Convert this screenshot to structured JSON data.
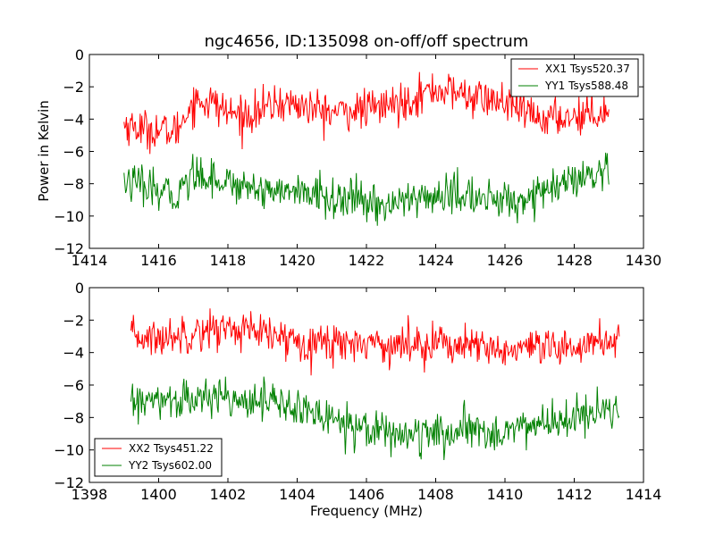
{
  "figure": {
    "title": "ngc4656, ID:135098 on-off/off spectrum",
    "ylabel": "Power in Kelvin",
    "xlabel": "Frequency (MHz)"
  },
  "colors": {
    "red": "#ff0000",
    "green": "#008000"
  },
  "chart_data": [
    {
      "type": "line",
      "title": "ngc4656, ID:135098 on-off/off spectrum",
      "ylabel": "Power in Kelvin",
      "xlabel": "",
      "xlim": [
        1414,
        1430
      ],
      "ylim": [
        -12,
        0
      ],
      "xticks": [
        1414,
        1416,
        1418,
        1420,
        1422,
        1424,
        1426,
        1428,
        1430
      ],
      "yticks": [
        0,
        -2,
        -4,
        -6,
        -8,
        -10,
        -12
      ],
      "x_range": [
        1415.0,
        1429.0
      ],
      "grid": false,
      "legend_position": "top-right",
      "series": [
        {
          "name": "XX1 Tsys520.37",
          "color": "#ff0000",
          "x": [
            1415.0,
            1415.5,
            1416.0,
            1416.5,
            1416.8,
            1417.0,
            1417.5,
            1418.0,
            1418.5,
            1419.0,
            1419.5,
            1420.0,
            1420.5,
            1421.0,
            1421.5,
            1422.0,
            1422.5,
            1423.0,
            1423.5,
            1424.0,
            1424.5,
            1425.0,
            1425.5,
            1426.0,
            1426.5,
            1427.0,
            1427.5,
            1428.0,
            1428.5,
            1429.0
          ],
          "y": [
            -4.3,
            -4.6,
            -4.7,
            -4.8,
            -3.6,
            -2.9,
            -2.9,
            -3.6,
            -3.8,
            -3.4,
            -3.0,
            -3.1,
            -3.4,
            -3.6,
            -3.5,
            -3.4,
            -3.2,
            -3.0,
            -2.5,
            -2.2,
            -2.3,
            -2.6,
            -2.8,
            -3.0,
            -3.5,
            -4.0,
            -3.9,
            -3.8,
            -3.6,
            -3.5
          ]
        },
        {
          "name": "YY1 Tsys588.48",
          "color": "#008000",
          "x": [
            1415.0,
            1415.5,
            1416.0,
            1416.5,
            1417.0,
            1417.5,
            1418.0,
            1418.5,
            1419.0,
            1419.5,
            1420.0,
            1420.5,
            1421.0,
            1421.5,
            1422.0,
            1422.5,
            1423.0,
            1423.5,
            1424.0,
            1424.5,
            1425.0,
            1425.5,
            1426.0,
            1426.5,
            1427.0,
            1427.5,
            1428.0,
            1428.5,
            1429.0
          ],
          "y": [
            -7.8,
            -8.2,
            -8.6,
            -8.7,
            -7.4,
            -7.5,
            -8.0,
            -8.1,
            -8.3,
            -8.4,
            -8.5,
            -8.7,
            -8.9,
            -9.0,
            -9.2,
            -9.3,
            -9.1,
            -8.9,
            -8.8,
            -8.7,
            -8.8,
            -9.0,
            -9.1,
            -8.9,
            -8.6,
            -8.2,
            -7.9,
            -7.6,
            -7.4
          ]
        }
      ]
    },
    {
      "type": "line",
      "title": "",
      "xlabel": "Frequency (MHz)",
      "ylabel": "",
      "xlim": [
        1398,
        1414
      ],
      "ylim": [
        -12,
        0
      ],
      "xticks": [
        1398,
        1400,
        1402,
        1404,
        1406,
        1408,
        1410,
        1412,
        1414
      ],
      "yticks": [
        0,
        -2,
        -4,
        -6,
        -8,
        -10,
        -12
      ],
      "x_range": [
        1399.2,
        1413.3
      ],
      "grid": false,
      "legend_position": "bottom-left",
      "series": [
        {
          "name": "XX2 Tsys451.22",
          "color": "#ff0000",
          "x": [
            1399.2,
            1399.6,
            1400.0,
            1400.5,
            1401.0,
            1401.5,
            1402.0,
            1402.5,
            1403.0,
            1403.5,
            1404.0,
            1404.5,
            1405.0,
            1405.5,
            1406.0,
            1406.5,
            1407.0,
            1407.5,
            1408.0,
            1408.5,
            1409.0,
            1409.5,
            1410.0,
            1410.5,
            1411.0,
            1411.5,
            1412.0,
            1412.5,
            1413.0,
            1413.3
          ],
          "y": [
            -3.1,
            -3.0,
            -3.2,
            -2.9,
            -2.7,
            -2.6,
            -2.5,
            -2.6,
            -2.9,
            -3.1,
            -3.2,
            -3.3,
            -3.4,
            -3.4,
            -3.3,
            -3.5,
            -3.6,
            -3.4,
            -3.3,
            -3.5,
            -3.7,
            -3.8,
            -3.9,
            -3.8,
            -3.9,
            -3.9,
            -3.6,
            -3.4,
            -3.2,
            -3.1
          ]
        },
        {
          "name": "YY2 Tsys602.00",
          "color": "#008000",
          "x": [
            1399.2,
            1399.6,
            1400.0,
            1400.5,
            1401.0,
            1401.5,
            1402.0,
            1402.5,
            1403.0,
            1403.5,
            1404.0,
            1404.5,
            1405.0,
            1405.5,
            1406.0,
            1406.5,
            1407.0,
            1407.5,
            1408.0,
            1408.5,
            1409.0,
            1409.5,
            1410.0,
            1410.5,
            1411.0,
            1411.5,
            1412.0,
            1412.5,
            1413.0,
            1413.3
          ],
          "y": [
            -7.2,
            -7.0,
            -7.1,
            -6.9,
            -7.0,
            -6.8,
            -6.7,
            -6.8,
            -6.9,
            -7.2,
            -7.5,
            -7.8,
            -8.0,
            -8.3,
            -8.6,
            -8.8,
            -9.0,
            -9.1,
            -9.1,
            -9.0,
            -8.8,
            -8.9,
            -8.8,
            -8.6,
            -8.4,
            -8.3,
            -8.0,
            -7.9,
            -7.6,
            -7.4
          ]
        }
      ]
    }
  ]
}
